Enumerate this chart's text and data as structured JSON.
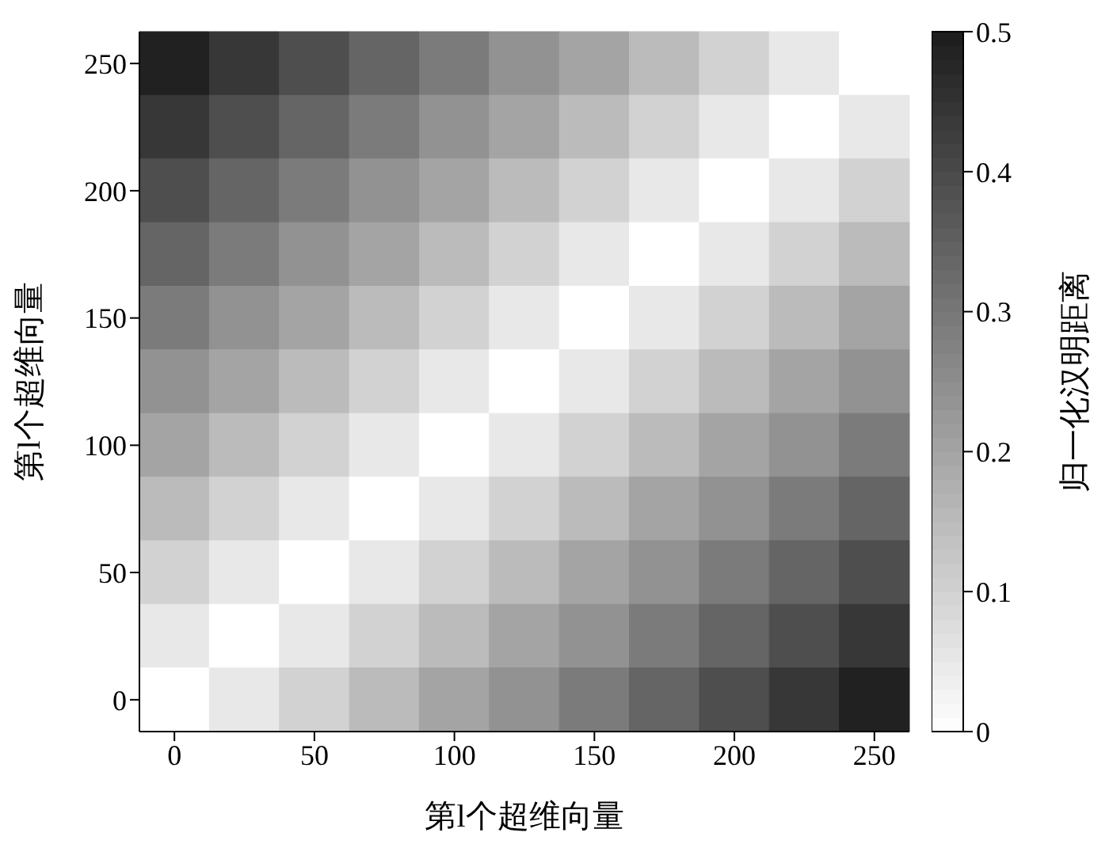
{
  "chart_data": {
    "type": "heatmap",
    "xlabel": "第l个超维向量",
    "ylabel": "第l个超维向量",
    "clabel": "归一化汉明距离",
    "categories": [
      "0",
      null,
      "50",
      null,
      "100",
      null,
      "150",
      null,
      "200",
      null,
      "250"
    ],
    "y_categories": [
      "250",
      null,
      "200",
      null,
      "150",
      null,
      "100",
      null,
      "50",
      null,
      "0"
    ],
    "clim": [
      0,
      0.5
    ],
    "cticks": [
      0,
      0.1,
      0.2,
      0.3,
      0.4,
      0.5
    ],
    "cells": [
      [
        0.49,
        0.44,
        0.39,
        0.34,
        0.29,
        0.24,
        0.2,
        0.15,
        0.1,
        0.05,
        0
      ],
      [
        0.44,
        0.39,
        0.34,
        0.29,
        0.24,
        0.2,
        0.15,
        0.1,
        0.05,
        0,
        0.05
      ],
      [
        0.39,
        0.34,
        0.29,
        0.24,
        0.2,
        0.15,
        0.1,
        0.05,
        0,
        0.05,
        0.1
      ],
      [
        0.34,
        0.29,
        0.24,
        0.2,
        0.15,
        0.1,
        0.05,
        0,
        0.05,
        0.1,
        0.15
      ],
      [
        0.29,
        0.24,
        0.2,
        0.15,
        0.1,
        0.05,
        0,
        0.05,
        0.1,
        0.15,
        0.2
      ],
      [
        0.24,
        0.2,
        0.15,
        0.1,
        0.05,
        0,
        0.05,
        0.1,
        0.15,
        0.2,
        0.24
      ],
      [
        0.2,
        0.15,
        0.1,
        0.05,
        0,
        0.05,
        0.1,
        0.15,
        0.2,
        0.24,
        0.29
      ],
      [
        0.15,
        0.1,
        0.05,
        0,
        0.05,
        0.1,
        0.15,
        0.2,
        0.24,
        0.29,
        0.34
      ],
      [
        0.1,
        0.05,
        0,
        0.05,
        0.1,
        0.15,
        0.2,
        0.24,
        0.29,
        0.34,
        0.39
      ],
      [
        0.05,
        0,
        0.05,
        0.1,
        0.15,
        0.2,
        0.24,
        0.29,
        0.34,
        0.39,
        0.44
      ],
      [
        0,
        0.05,
        0.1,
        0.15,
        0.2,
        0.24,
        0.29,
        0.34,
        0.39,
        0.44,
        0.49
      ]
    ]
  }
}
